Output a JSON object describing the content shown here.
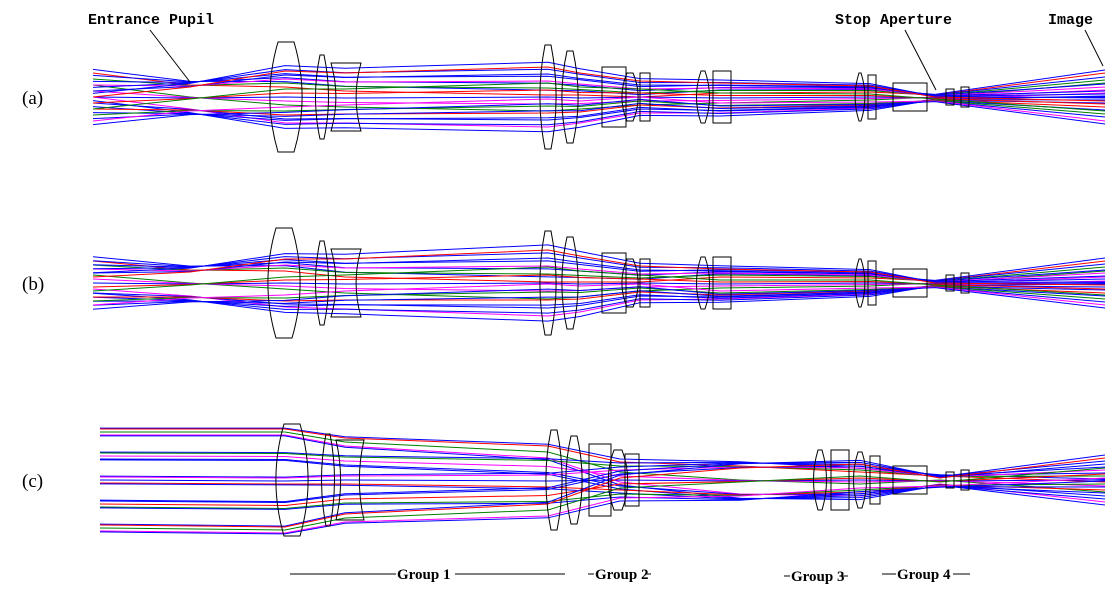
{
  "labels": {
    "entrance_pupil": "Entrance Pupil",
    "stop_aperture": "Stop Aperture",
    "image": "Image"
  },
  "panels": [
    {
      "label": "(a)"
    },
    {
      "label": "(b)"
    },
    {
      "label": "(c)"
    }
  ],
  "groups": [
    "Group 1",
    "Group 2",
    "Group 3",
    "Group 4"
  ]
}
